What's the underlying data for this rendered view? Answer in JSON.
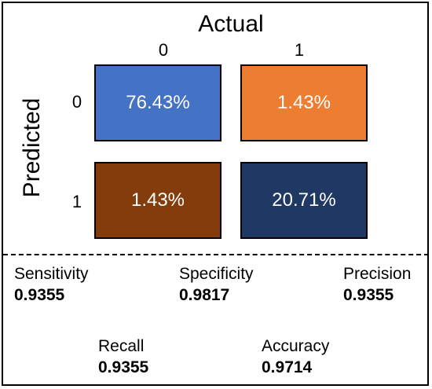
{
  "header": {
    "title": "Actual",
    "side_label": "Predicted"
  },
  "columns": [
    "0",
    "1"
  ],
  "rows": [
    "0",
    "1"
  ],
  "matrix": [
    [
      {
        "value": "76.43%",
        "color": "#4472c4"
      },
      {
        "value": "1.43%",
        "color": "#ed7d31"
      }
    ],
    [
      {
        "value": "1.43%",
        "color": "#843c0c"
      },
      {
        "value": "20.71%",
        "color": "#203864"
      }
    ]
  ],
  "metrics": [
    {
      "name": "Sensitivity",
      "value": "0.9355"
    },
    {
      "name": "Specificity",
      "value": "0.9817"
    },
    {
      "name": "Precision",
      "value": "0.9355"
    },
    {
      "name": "Recall",
      "value": "0.9355"
    },
    {
      "name": "Accuracy",
      "value": "0.9714"
    }
  ]
}
